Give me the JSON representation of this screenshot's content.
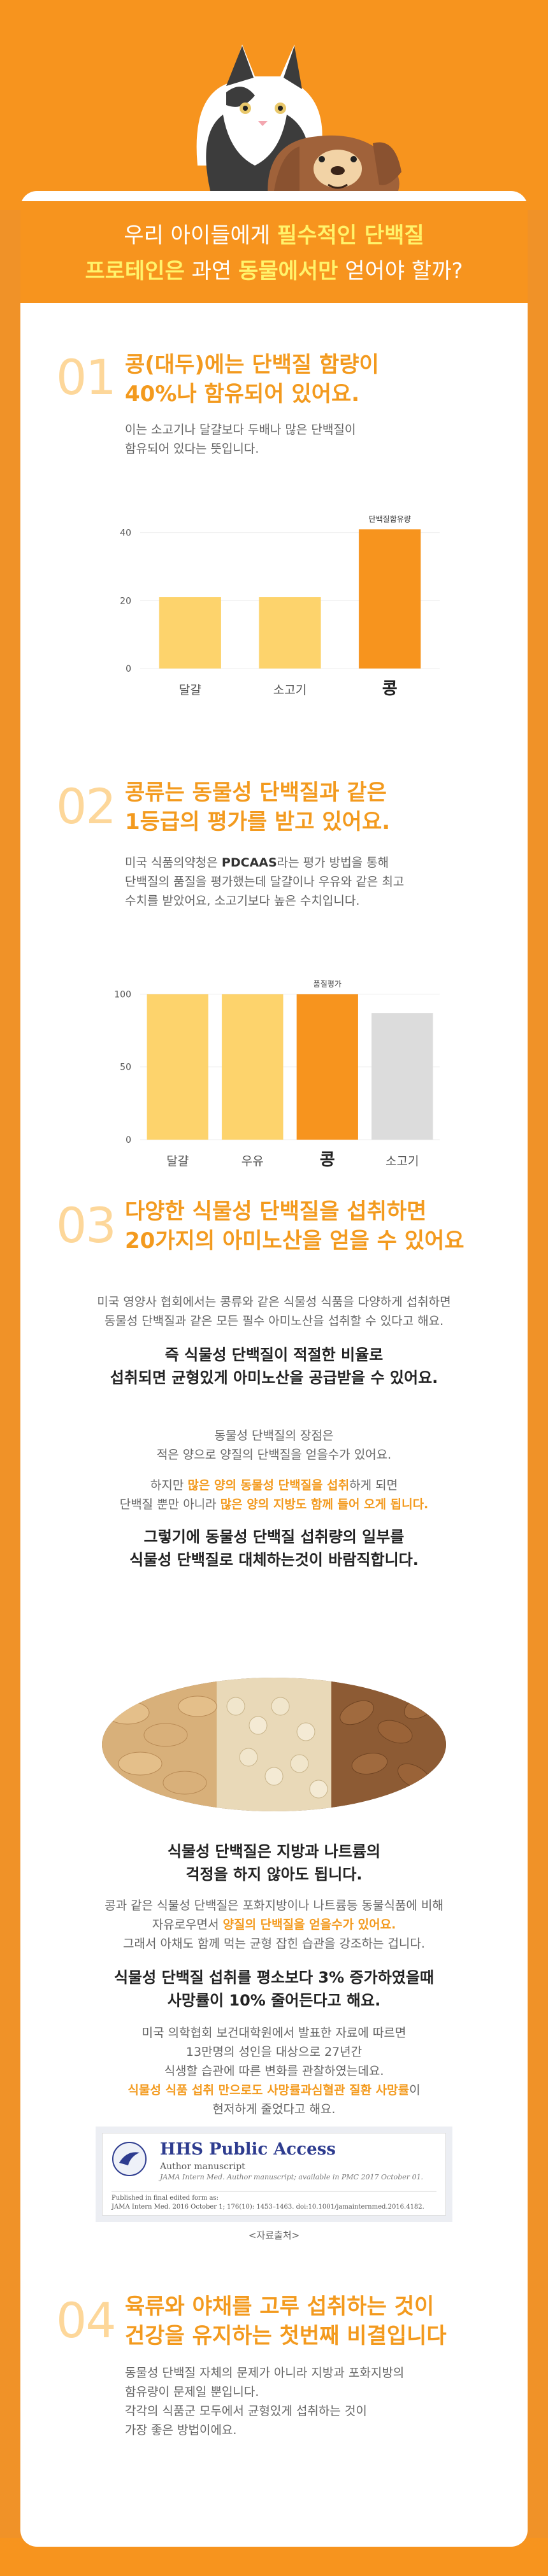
{
  "header": {
    "line1_pre": "우리 아이들에게 ",
    "line1_bold": "필수적인 단백질",
    "line2_bold1": "프로테인은",
    "line2_mid": " 과연 ",
    "line2_bold2": "동물에서만",
    "line2_post": " 얻어야 할까?"
  },
  "sections": {
    "s1": {
      "num": "01",
      "title_l1": "콩(대두)에는 단백질 함량이",
      "title_l2": "40%나 함유되어 있어요.",
      "body_l1": "이는 소고기나 달걀보다 두배나 많은 단백질이",
      "body_l2": "함유되어 있다는 뜻입니다."
    },
    "s2": {
      "num": "02",
      "title_l1": "콩류는 동물성 단백질과 같은",
      "title_l2": "1등급의 평가를 받고 있어요.",
      "body_l1_pre": "미국 식품의약청은 ",
      "body_l1_bold": "PDCAAS",
      "body_l1_post": "라는 평가 방법을 통해",
      "body_l2": "단백질의 품질을 평가했는데 달걀이나 우유와 같은 최고",
      "body_l3": "수치를 받았어요, 소고기보다 높은 수치입니다."
    },
    "s3": {
      "num": "03",
      "title_l1": "다양한 식물성 단백질을 섭취하면",
      "title_l2": "20가지의 아미노산을 얻을 수 있어요",
      "p1_l1": "미국 영양사 협회에서는 콩류와 같은 식물성 식품을 다양하게 섭취하면",
      "p1_l2": "동물성 단백질과 같은 모든 필수 아미노산을 섭취할 수 있다고 해요.",
      "strong1_l1": "즉 식물성 단백질이 적절한 비율로",
      "strong1_l2": "섭취되면 균형있게 아미노산을 공급받을 수 있어요.",
      "p2_l1": "동물성 단백질의 장점은",
      "p2_l2": "적은 양으로 양질의 단백질을 얻을수가 있어요.",
      "p3_l1_pre": "하지만 ",
      "p3_l1_hl": "많은 양의 동물성 단백질을 섭취",
      "p3_l1_post": "하게 되면",
      "p3_l2_pre": "단백질 뿐만 아니라 ",
      "p3_l2_hl": "많은 양의 지방도 함께 들어 오게 됩니다.",
      "strong2_l1": "그렇기에 동물성 단백질 섭취량의 일부를",
      "strong2_l2": "식물성 단백질로 대체하는것이 바람직합니다.",
      "strong3_l1": "식물성 단백질은 지방과 나트륨의",
      "strong3_l2": "걱정을 하지 않아도 됩니다.",
      "p4_l1": "콩과 같은 식물성 단백질은 포화지방이나 나트륨등 동물식품에 비해",
      "p4_l2_pre": "자유로우면서 ",
      "p4_l2_hl": "양질의 단백질을 얻을수가 있어요.",
      "p4_l3": "그래서 아채도 함께 먹는 균형 잡힌 습관을 강조하는 겁니다.",
      "strong4_l1": "식물성 단백질 섭취를 평소보다 3% 증가하였을때",
      "strong4_l2": "사망률이 10% 줄어든다고 해요.",
      "p5_l1": "미국 의학협회 보건대학원에서 발표한 자료에 따르면",
      "p5_l2": "13만명의 성인을 대상으로 27년간",
      "p5_l3": "식생할 습관에 따른 변화를 관찰하였는데요.",
      "p5_l4_hl": "식물성 식품 섭취 만으로도 사망률과심혈관 질환 사망률",
      "p5_l4_post": "이",
      "p5_l5": "현저하게 줄었다고 해요."
    },
    "s4": {
      "num": "04",
      "title_l1": "육류와 야채를 고루 섭취하는 것이",
      "title_l2": "건강을 유지하는 첫번째 비결입니다",
      "body_l1": "동물성 단백질 자체의 문제가 아니라 지방과 포화지방의",
      "body_l2": "함유량이 문제일 뿐입니다.",
      "body_l3": "각각의 식품군 모두에서 균형있게 섭취하는 것이",
      "body_l4": "가장 좋은 방법이에요."
    }
  },
  "paper": {
    "title": "HHS Public Access",
    "subtitle": "Author manuscript",
    "citation": "JAMA Intern Med. Author manuscript; available in PMC 2017 October 01.",
    "published": "Published in final edited form as:",
    "ref": "JAMA Intern Med. 2016 October 1; 176(10): 1453–1463. doi:10.1001/jamainternmed.2016.4182.",
    "source_label": "<자료출처>"
  },
  "colors": {
    "orange": "#f7941e",
    "light_orange": "#fdd36c",
    "gray_bar": "#dcdcdc",
    "title_orange": "#f39a1e"
  },
  "chart_data": [
    {
      "type": "bar",
      "title": "단백질함유량",
      "categories": [
        "달걀",
        "소고기",
        "콩"
      ],
      "values": [
        21,
        21,
        41
      ],
      "highlight_index": 2,
      "ylim": [
        0,
        45
      ],
      "yticks": [
        0,
        20,
        40
      ],
      "xlabel": "",
      "ylabel": ""
    },
    {
      "type": "bar",
      "title": "품질평가",
      "categories": [
        "달걀",
        "우유",
        "콩",
        "소고기"
      ],
      "values": [
        100,
        100,
        100,
        87
      ],
      "highlight_index": 2,
      "gray_index": 3,
      "ylim": [
        0,
        105
      ],
      "yticks": [
        0,
        50,
        100
      ],
      "xlabel": "",
      "ylabel": ""
    }
  ]
}
